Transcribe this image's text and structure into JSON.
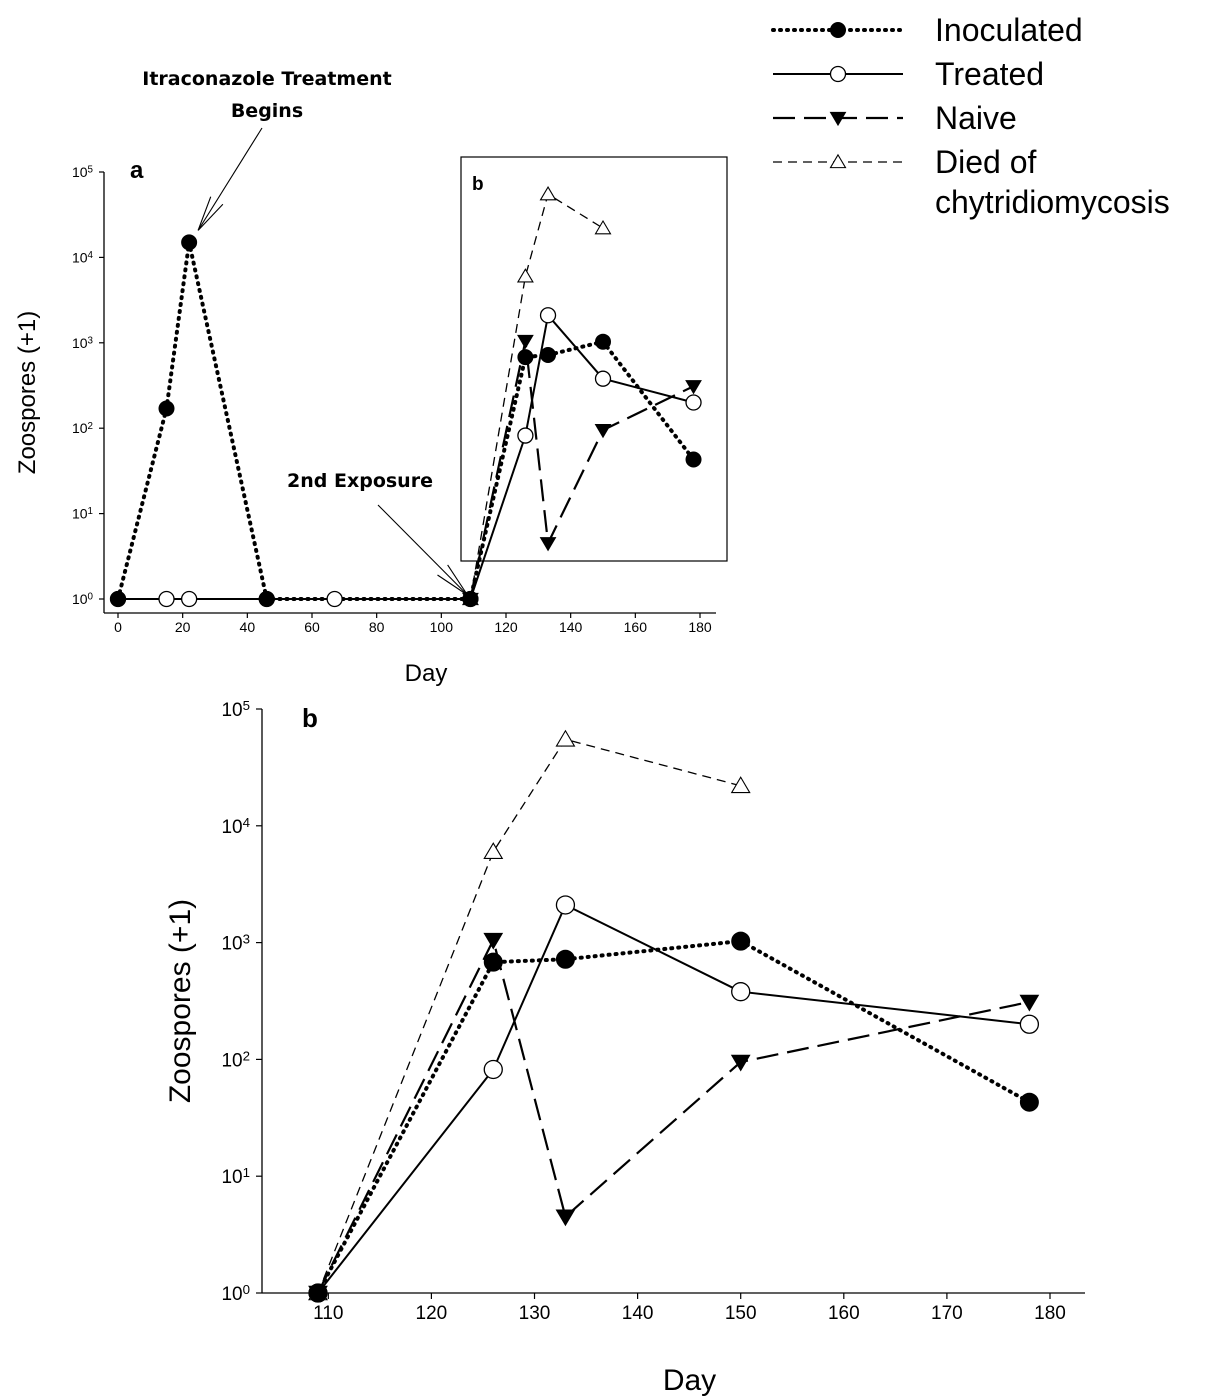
{
  "chart_data": [
    {
      "panel": "a",
      "type": "line",
      "xlabel": "Day",
      "ylabel": "Zoospores (+1)",
      "yscale": "log",
      "xlim": [
        -5,
        182
      ],
      "ylim": [
        1,
        100000
      ],
      "xticks": [
        0,
        20,
        40,
        60,
        80,
        100,
        120,
        140,
        160,
        180
      ],
      "yticks": [
        "10^0",
        "10^1",
        "10^2",
        "10^3",
        "10^4",
        "10^5"
      ],
      "annotations": [
        {
          "text_lines": [
            "Itraconazole Treatment",
            "Begins"
          ],
          "points_to": {
            "x": 22,
            "y": 15000
          }
        },
        {
          "text_lines": [
            "2nd Exposure"
          ],
          "points_to": {
            "x": 109,
            "y": 1
          }
        }
      ],
      "inset_label": "b",
      "series": [
        {
          "name": "Inoculated",
          "style": "dotted",
          "marker": "filled-circle",
          "color": "#000000",
          "x": [
            0,
            15,
            22,
            46,
            109,
            126,
            133,
            150,
            178
          ],
          "y": [
            1,
            170,
            15000,
            1,
            1,
            680,
            720,
            1030,
            43
          ]
        },
        {
          "name": "Treated",
          "style": "solid",
          "marker": "open-circle",
          "color": "#000000",
          "x": [
            0,
            15,
            22,
            46,
            67,
            109,
            126,
            133,
            150,
            178
          ],
          "y": [
            1,
            1,
            1,
            1,
            1,
            1,
            82,
            2100,
            380,
            200
          ]
        },
        {
          "name": "Naive",
          "style": "long-dash",
          "marker": "filled-triangle-down",
          "color": "#000000",
          "x": [
            109,
            126,
            133,
            150,
            178
          ],
          "y": [
            1,
            1050,
            4.5,
            95,
            310
          ]
        },
        {
          "name": "Died of chytridiomycosis",
          "style": "short-dash",
          "marker": "open-triangle-up",
          "color": "#000000",
          "x": [
            109,
            126,
            133,
            150
          ],
          "y": [
            1,
            6000,
            55000,
            22000
          ]
        }
      ]
    },
    {
      "panel": "b",
      "type": "line",
      "xlabel": "Day",
      "ylabel": "Zoospores (+1)",
      "yscale": "log",
      "xlim": [
        104,
        182
      ],
      "ylim": [
        1,
        100000
      ],
      "xticks": [
        110,
        120,
        130,
        140,
        150,
        160,
        170,
        180
      ],
      "yticks": [
        "10^0",
        "10^1",
        "10^2",
        "10^3",
        "10^4",
        "10^5"
      ],
      "series": [
        {
          "name": "Inoculated",
          "style": "dotted",
          "marker": "filled-circle",
          "color": "#000000",
          "x": [
            109,
            126,
            133,
            150,
            178
          ],
          "y": [
            1,
            680,
            720,
            1030,
            43
          ]
        },
        {
          "name": "Treated",
          "style": "solid",
          "marker": "open-circle",
          "color": "#000000",
          "x": [
            109,
            126,
            133,
            150,
            178
          ],
          "y": [
            1,
            82,
            2100,
            380,
            200
          ]
        },
        {
          "name": "Naive",
          "style": "long-dash",
          "marker": "filled-triangle-down",
          "color": "#000000",
          "x": [
            109,
            126,
            133,
            150,
            178
          ],
          "y": [
            1,
            1050,
            4.5,
            95,
            310
          ]
        },
        {
          "name": "Died of chytridiomycosis",
          "style": "short-dash",
          "marker": "open-triangle-up",
          "color": "#000000",
          "x": [
            109,
            126,
            133,
            150
          ],
          "y": [
            1,
            6000,
            55000,
            22000
          ]
        }
      ]
    }
  ],
  "legend": {
    "placement": "top-right",
    "entries": [
      {
        "series": "Inoculated",
        "lines": [
          "Inoculated"
        ]
      },
      {
        "series": "Treated",
        "lines": [
          "Treated"
        ]
      },
      {
        "series": "Naive",
        "lines": [
          "Naive"
        ]
      },
      {
        "series": "Died of chytridiomycosis",
        "lines": [
          "Died of",
          "chytridiomycosis"
        ]
      }
    ]
  }
}
